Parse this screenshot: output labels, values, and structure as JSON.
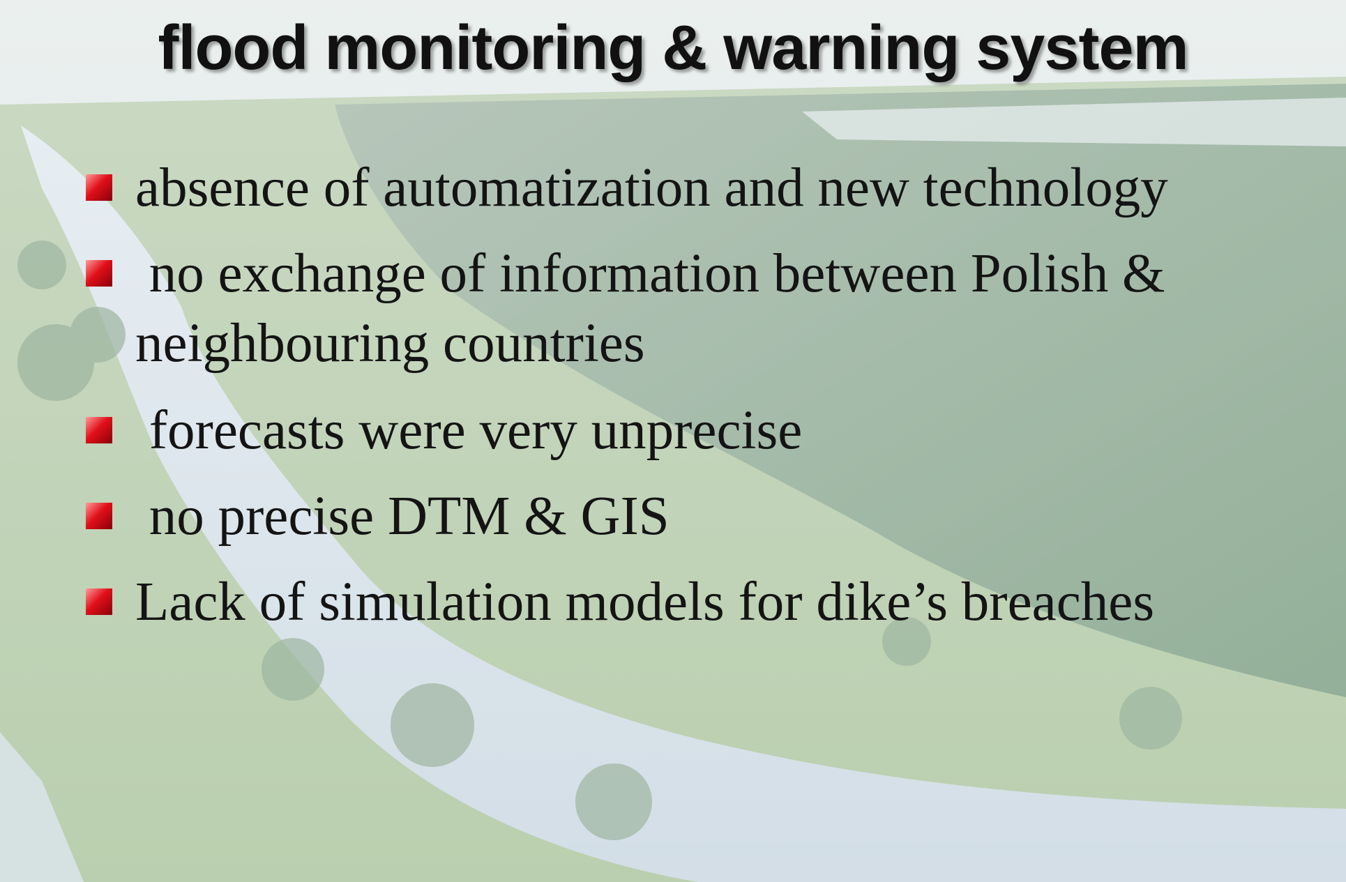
{
  "slide": {
    "title": "flood monitoring & warning system",
    "bullets": [
      "absence of automatization and new technology",
      " no exchange of information between Polish & neighbouring countries",
      " forecasts were very unprecise",
      " no precise DTM & GIS",
      "Lack of simulation models for dike’s breaches"
    ]
  }
}
